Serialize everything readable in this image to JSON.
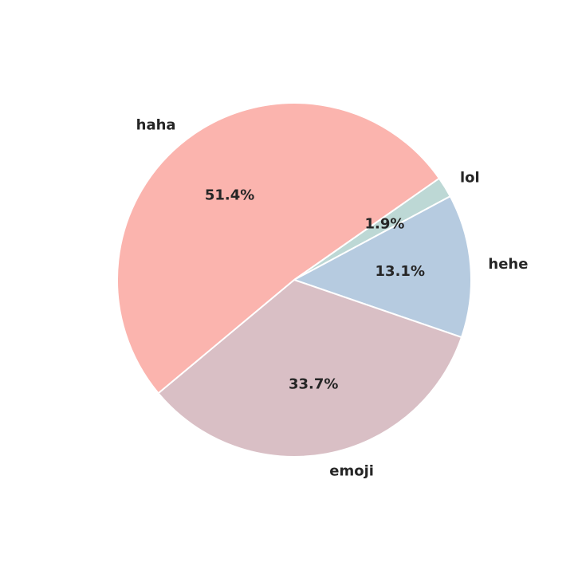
{
  "chart_data": {
    "type": "pie",
    "title": "",
    "start_angle_deg": 35,
    "direction": "clockwise",
    "slices": [
      {
        "label": "lol",
        "value": 1.9,
        "pct_label": "1.9%",
        "color": "#bdd8d5"
      },
      {
        "label": "hehe",
        "value": 13.1,
        "pct_label": "13.1%",
        "color": "#b6cbe0"
      },
      {
        "label": "emoji",
        "value": 33.7,
        "pct_label": "33.7%",
        "color": "#d9bfc5"
      },
      {
        "label": "haha",
        "value": 51.4,
        "pct_label": "51.4%",
        "color": "#fbb4ae"
      }
    ],
    "edge_color": "#ffffff"
  }
}
